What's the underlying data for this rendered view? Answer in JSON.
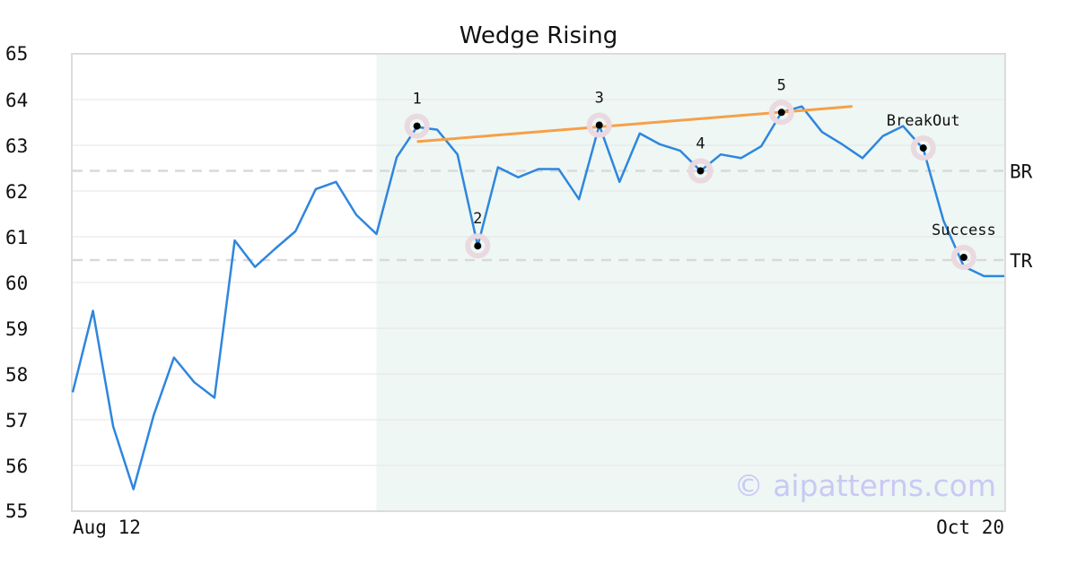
{
  "chart_data": {
    "type": "line",
    "title": "Wedge Rising",
    "x_tick_labels": [
      "Aug 12",
      "Oct 20"
    ],
    "ylim": [
      55,
      65
    ],
    "yticks": [
      55,
      56,
      57,
      58,
      59,
      60,
      61,
      62,
      63,
      64,
      65
    ],
    "grid": true,
    "series": [
      {
        "color": "#2e86de",
        "values": [
          57.6,
          59.38,
          56.85,
          55.48,
          57.1,
          58.36,
          57.82,
          57.48,
          60.92,
          60.34,
          60.74,
          61.12,
          62.04,
          62.2,
          61.48,
          61.06,
          62.74,
          63.4,
          63.34,
          62.8,
          60.8,
          62.52,
          62.3,
          62.48,
          62.48,
          61.82,
          63.44,
          62.2,
          63.26,
          63.02,
          62.88,
          62.44,
          62.8,
          62.72,
          62.98,
          63.72,
          63.85,
          63.29,
          63.02,
          62.72,
          63.2,
          63.42,
          62.92,
          61.35,
          60.35,
          60.14,
          60.14
        ]
      }
    ],
    "pattern_region": {
      "start_index": 15,
      "end_index": 46,
      "color": "#eef7f3"
    },
    "trendline": {
      "color": "#f5a04a",
      "start": {
        "index": 17,
        "value": 63.08
      },
      "end": {
        "index": 38.5,
        "value": 63.85
      }
    },
    "key_points": [
      {
        "label": "1",
        "index": 17,
        "value": 63.42
      },
      {
        "label": "2",
        "index": 20,
        "value": 60.8
      },
      {
        "label": "3",
        "index": 26,
        "value": 63.44
      },
      {
        "label": "4",
        "index": 31,
        "value": 62.44
      },
      {
        "label": "5",
        "index": 35,
        "value": 63.72
      },
      {
        "label": "BreakOut",
        "index": 42,
        "value": 62.94
      },
      {
        "label": "Success",
        "index": 44,
        "value": 60.55
      }
    ],
    "reference_lines": [
      {
        "label": "BR",
        "value": 62.44
      },
      {
        "label": "TR",
        "value": 60.49
      }
    ]
  },
  "watermark": "© aipatterns.com"
}
